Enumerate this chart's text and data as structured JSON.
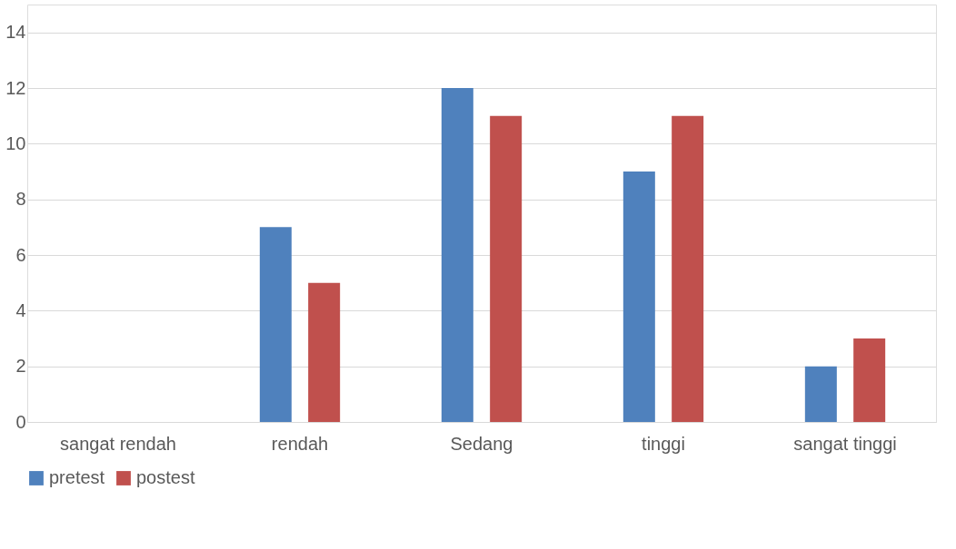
{
  "chart_data": {
    "type": "bar",
    "categories": [
      "sangat rendah",
      "rendah",
      "Sedang",
      "tinggi",
      "sangat tinggi"
    ],
    "series": [
      {
        "name": "pretest",
        "color": "#4f81bd",
        "values": [
          0,
          7,
          12,
          9,
          2
        ]
      },
      {
        "name": "postest",
        "color": "#c0504d",
        "values": [
          0,
          5,
          11,
          11,
          3
        ]
      }
    ],
    "ylim": [
      0,
      15
    ],
    "yticks": [
      0,
      2,
      4,
      6,
      8,
      10,
      12,
      14
    ],
    "grid": "y",
    "legend": "bottom"
  }
}
